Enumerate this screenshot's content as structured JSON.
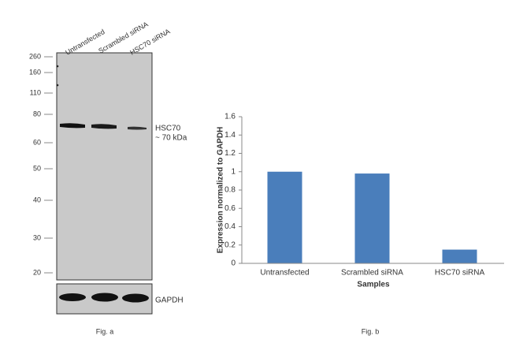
{
  "blot": {
    "lanes": [
      "Untransfected",
      "Scrambled siRNA",
      "HSC70 siRNA"
    ],
    "markers": [
      260,
      160,
      110,
      80,
      60,
      50,
      40,
      30,
      20
    ],
    "band_label": "HSC70",
    "band_size": "~ 70 kDa",
    "loading_label": "GAPDH",
    "caption": "Fig. a"
  },
  "chart_data": {
    "type": "bar",
    "categories": [
      "Untransfected",
      "Scrambled siRNA",
      "HSC70 siRNA"
    ],
    "values": [
      1.0,
      0.98,
      0.15
    ],
    "color": "#4a7ebb",
    "ylim": [
      0,
      1.6
    ],
    "yticks": [
      0,
      0.2,
      0.4,
      0.6,
      0.8,
      1,
      1.2,
      1.4,
      1.6
    ],
    "ylabel": "Expression normalized to GAPDH",
    "xlabel": "Samples",
    "caption": "Fig. b"
  }
}
